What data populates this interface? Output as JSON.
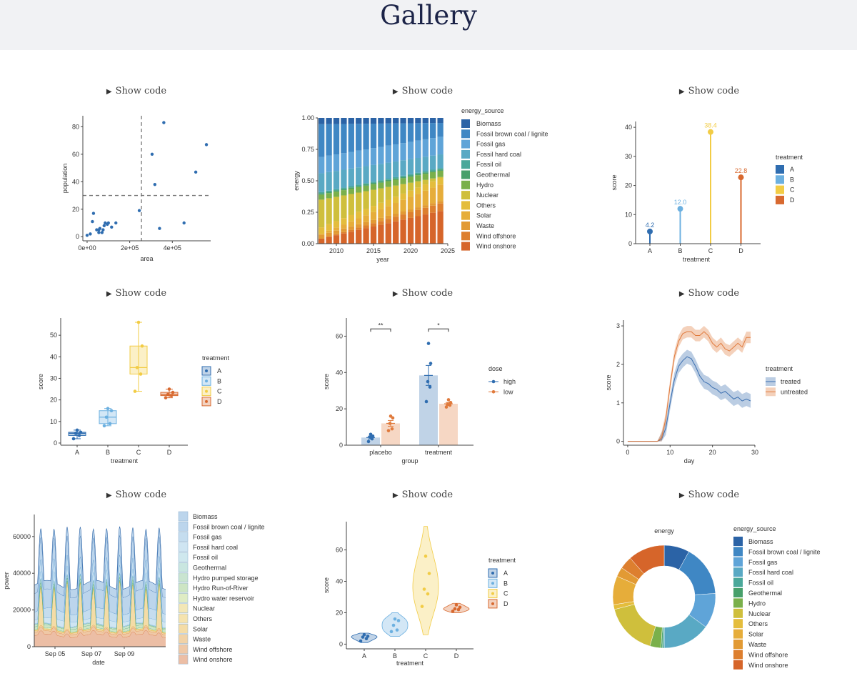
{
  "page": {
    "title": "Gallery",
    "show_code_label": "Show code"
  },
  "colors": {
    "A": "#2f6db0",
    "B": "#6cb0e0",
    "C": "#f2cc45",
    "D": "#d8692f",
    "high": "#2f6db0",
    "low": "#e07a3c",
    "treated": "#3b6fb0",
    "untreated": "#e07a3c",
    "energy": [
      "#2b63a6",
      "#3f87c4",
      "#5fa4d8",
      "#59a9c4",
      "#4aa89a",
      "#47a06b",
      "#7ab04b",
      "#cfbf3c",
      "#e4bd3c",
      "#e6ad3a",
      "#e29a34",
      "#dd7f2f",
      "#d6652a"
    ]
  },
  "chart_data": [
    {
      "type": "scatter",
      "xlabel": "area",
      "ylabel": "population",
      "xlim": [
        -20000,
        580000
      ],
      "ylim": [
        -3,
        88
      ],
      "xticks": [
        0,
        200000,
        400000
      ],
      "xtick_labels": [
        "0e+00",
        "2e+05",
        "4e+05"
      ],
      "yticks": [
        0,
        20,
        40,
        60,
        80
      ],
      "vline": 255000,
      "hline": 30,
      "points": [
        [
          0,
          1
        ],
        [
          15000,
          2
        ],
        [
          25000,
          11
        ],
        [
          30000,
          17
        ],
        [
          45000,
          5
        ],
        [
          55000,
          3
        ],
        [
          55000,
          5
        ],
        [
          60000,
          6
        ],
        [
          70000,
          3
        ],
        [
          75000,
          5
        ],
        [
          80000,
          8
        ],
        [
          85000,
          10
        ],
        [
          95000,
          9
        ],
        [
          100000,
          10
        ],
        [
          115000,
          7
        ],
        [
          135000,
          10
        ],
        [
          245000,
          19
        ],
        [
          305000,
          60
        ],
        [
          318000,
          38
        ],
        [
          340000,
          6
        ],
        [
          360000,
          83
        ],
        [
          455000,
          10
        ],
        [
          510000,
          47
        ],
        [
          560000,
          67
        ]
      ]
    },
    {
      "type": "bar",
      "stacked": true,
      "xlabel": "year",
      "ylabel": "energy",
      "legend_title": "energy_source",
      "x": [
        2008,
        2009,
        2010,
        2011,
        2012,
        2013,
        2014,
        2015,
        2016,
        2017,
        2018,
        2019,
        2020,
        2021,
        2022,
        2023,
        2024
      ],
      "xticks": [
        2010,
        2015,
        2020,
        2025
      ],
      "yticks": [
        0,
        0.25,
        0.5,
        0.75,
        1
      ],
      "ytick_labels": [
        "0.00",
        "0.25",
        "0.50",
        "0.75",
        "1.00"
      ],
      "ylim": [
        0,
        1
      ],
      "series": [
        {
          "name": "Wind onshore",
          "start": 0.04,
          "end": 0.26
        },
        {
          "name": "Wind offshore",
          "start": 0.0,
          "end": 0.06
        },
        {
          "name": "Waste",
          "start": 0.03,
          "end": 0.02
        },
        {
          "name": "Solar",
          "start": 0.01,
          "end": 0.13
        },
        {
          "name": "Others",
          "start": 0.05,
          "end": 0.05
        },
        {
          "name": "Nuclear",
          "start": 0.22,
          "end": 0.01
        },
        {
          "name": "Hydro",
          "start": 0.04,
          "end": 0.05
        },
        {
          "name": "Geothermal",
          "start": 0.01,
          "end": 0.01
        },
        {
          "name": "Fossil oil",
          "start": 0.01,
          "end": 0.01
        },
        {
          "name": "Fossil hard coal",
          "start": 0.15,
          "end": 0.11
        },
        {
          "name": "Fossil gas",
          "start": 0.13,
          "end": 0.14
        },
        {
          "name": "Fossil brown coal / lignite",
          "start": 0.26,
          "end": 0.11
        },
        {
          "name": "Biomass",
          "start": 0.05,
          "end": 0.04
        }
      ],
      "legend": [
        "Biomass",
        "Fossil brown coal / lignite",
        "Fossil gas",
        "Fossil hard coal",
        "Fossil oil",
        "Geothermal",
        "Hydro",
        "Nuclear",
        "Others",
        "Solar",
        "Waste",
        "Wind offshore",
        "Wind onshore"
      ]
    },
    {
      "type": "lollipop",
      "xlabel": "treatment",
      "ylabel": "score",
      "legend_title": "treatment",
      "categories": [
        "A",
        "B",
        "C",
        "D"
      ],
      "values": [
        4.2,
        12.0,
        38.4,
        22.8
      ],
      "value_labels": [
        "4.2",
        "12.0",
        "38.4",
        "22.8"
      ],
      "ylim": [
        0,
        42
      ],
      "yticks": [
        0,
        10,
        20,
        30,
        40
      ]
    },
    {
      "type": "boxplot",
      "xlabel": "treatment",
      "ylabel": "score",
      "legend_title": "treatment",
      "categories": [
        "A",
        "B",
        "C",
        "D"
      ],
      "boxes": [
        {
          "min": 2,
          "q1": 3.5,
          "median": 4.5,
          "q3": 5,
          "max": 6,
          "points": [
            2,
            3.5,
            4.5,
            5,
            6
          ]
        },
        {
          "min": 8,
          "q1": 9,
          "median": 12,
          "q3": 15,
          "max": 16,
          "points": [
            8,
            9,
            12,
            15,
            16
          ]
        },
        {
          "min": 24,
          "q1": 32,
          "median": 35,
          "q3": 45,
          "max": 56,
          "points": [
            24,
            32,
            35,
            45,
            56
          ]
        },
        {
          "min": 21,
          "q1": 22,
          "median": 22.5,
          "q3": 23.5,
          "max": 25,
          "points": [
            21,
            22,
            22.5,
            23.5,
            25
          ]
        }
      ],
      "ylim": [
        -1,
        58
      ],
      "yticks": [
        0,
        10,
        20,
        30,
        40,
        50
      ]
    },
    {
      "type": "bar",
      "grouped": true,
      "xlabel": "group",
      "ylabel": "score",
      "legend_title": "dose",
      "categories": [
        "placebo",
        "treatment"
      ],
      "series": [
        {
          "name": "high",
          "values": [
            4.2,
            38.4
          ],
          "se": [
            0.8,
            5.5
          ],
          "points": [
            [
              2,
              3.5,
              4.5,
              5,
              6
            ],
            [
              24,
              32,
              35,
              45,
              56
            ]
          ]
        },
        {
          "name": "low",
          "values": [
            12.0,
            22.8
          ],
          "se": [
            1.6,
            0.7
          ],
          "points": [
            [
              8,
              9,
              12,
              15,
              16
            ],
            [
              21,
              22,
              22.5,
              23.5,
              25
            ]
          ]
        }
      ],
      "annotations": [
        {
          "label": "**",
          "group": 0
        },
        {
          "label": "*",
          "group": 1
        }
      ],
      "ylim": [
        0,
        70
      ],
      "yticks": [
        0,
        20,
        40,
        60
      ]
    },
    {
      "type": "line",
      "xlabel": "day",
      "ylabel": "score",
      "legend_title": "treatment",
      "xlim": [
        -1,
        30
      ],
      "ylim": [
        -0.1,
        3.15
      ],
      "xticks": [
        0,
        10,
        20,
        30
      ],
      "yticks": [
        0,
        1,
        2,
        3
      ],
      "x": [
        0,
        1,
        2,
        3,
        4,
        5,
        6,
        7,
        8,
        9,
        10,
        11,
        12,
        13,
        14,
        15,
        16,
        17,
        18,
        19,
        20,
        21,
        22,
        23,
        24,
        25,
        26,
        27,
        28,
        29
      ],
      "series": [
        {
          "name": "treated",
          "values": [
            0,
            0,
            0,
            0,
            0,
            0,
            0,
            0,
            0.05,
            0.35,
            1.0,
            1.6,
            1.95,
            2.1,
            2.2,
            2.15,
            1.95,
            1.7,
            1.55,
            1.5,
            1.4,
            1.35,
            1.25,
            1.3,
            1.2,
            1.1,
            1.15,
            1.05,
            1.1,
            1.05
          ],
          "band": 0.18
        },
        {
          "name": "untreated",
          "values": [
            0,
            0,
            0,
            0,
            0,
            0,
            0,
            0,
            0.1,
            0.6,
            1.45,
            2.2,
            2.6,
            2.8,
            2.85,
            2.85,
            2.75,
            2.75,
            2.85,
            2.75,
            2.55,
            2.45,
            2.55,
            2.4,
            2.35,
            2.45,
            2.55,
            2.45,
            2.7,
            2.7
          ],
          "band": 0.15
        }
      ]
    },
    {
      "type": "area",
      "stacked": true,
      "xlabel": "date",
      "ylabel": "power",
      "ylim": [
        0,
        72000
      ],
      "yticks": [
        0,
        20000,
        40000,
        60000
      ],
      "xtick_labels": [
        "Sep 05",
        "Sep 07",
        "Sep 09"
      ],
      "days": 10,
      "series": [
        {
          "name": "Wind onshore",
          "base": 5000,
          "amp": 4000
        },
        {
          "name": "Wind offshore",
          "base": 1500,
          "amp": 600
        },
        {
          "name": "Waste",
          "base": 800,
          "amp": 0
        },
        {
          "name": "Solar",
          "base": 0,
          "amp": 26000
        },
        {
          "name": "Others",
          "base": 300,
          "amp": 0
        },
        {
          "name": "Nuclear",
          "base": 0,
          "amp": 0
        },
        {
          "name": "Hydro water reservoir",
          "base": 300,
          "amp": 600
        },
        {
          "name": "Hydro Run-of-River",
          "base": 1400,
          "amp": 200
        },
        {
          "name": "Hydro pumped storage",
          "base": 300,
          "amp": 2000
        },
        {
          "name": "Geothermal",
          "base": 50,
          "amp": 0
        },
        {
          "name": "Fossil oil",
          "base": 300,
          "amp": 100
        },
        {
          "name": "Fossil hard coal",
          "base": 2000,
          "amp": 3000
        },
        {
          "name": "Fossil gas",
          "base": 4000,
          "amp": 3000
        },
        {
          "name": "Fossil brown coal / lignite",
          "base": 9000,
          "amp": 3000
        },
        {
          "name": "Biomass",
          "base": 4500,
          "amp": 200
        }
      ],
      "legend": [
        "Biomass",
        "Fossil brown coal / lignite",
        "Fossil gas",
        "Fossil hard coal",
        "Fossil oil",
        "Geothermal",
        "Hydro pumped storage",
        "Hydro Run-of-River",
        "Hydro water reservoir",
        "Nuclear",
        "Others",
        "Solar",
        "Waste",
        "Wind offshore",
        "Wind onshore"
      ]
    },
    {
      "type": "violin",
      "xlabel": "treatment",
      "ylabel": "score",
      "legend_title": "treatment",
      "categories": [
        "A",
        "B",
        "C",
        "D"
      ],
      "groups": [
        {
          "points": [
            2,
            3.5,
            4.5,
            5,
            6
          ],
          "range": [
            1,
            7
          ]
        },
        {
          "points": [
            8,
            9,
            12,
            15,
            16
          ],
          "range": [
            5,
            20
          ]
        },
        {
          "points": [
            24,
            32,
            35,
            45,
            56
          ],
          "range": [
            6,
            75
          ]
        },
        {
          "points": [
            21,
            22,
            22.5,
            23.5,
            25
          ],
          "range": [
            20,
            26
          ]
        }
      ],
      "ylim": [
        -3,
        78
      ],
      "yticks": [
        0,
        20,
        40,
        60
      ]
    },
    {
      "type": "pie",
      "donut": true,
      "title": "energy",
      "legend_title": "energy_source",
      "labels": [
        "Biomass",
        "Fossil brown coal / lignite",
        "Fossil gas",
        "Fossil hard coal",
        "Fossil oil",
        "Geothermal",
        "Hydro",
        "Nuclear",
        "Others",
        "Solar",
        "Waste",
        "Wind offshore",
        "Wind onshore"
      ],
      "values": [
        8,
        16,
        11,
        15,
        0.5,
        0.5,
        3.5,
        16.5,
        1.5,
        9,
        3,
        4,
        11.5
      ]
    }
  ]
}
